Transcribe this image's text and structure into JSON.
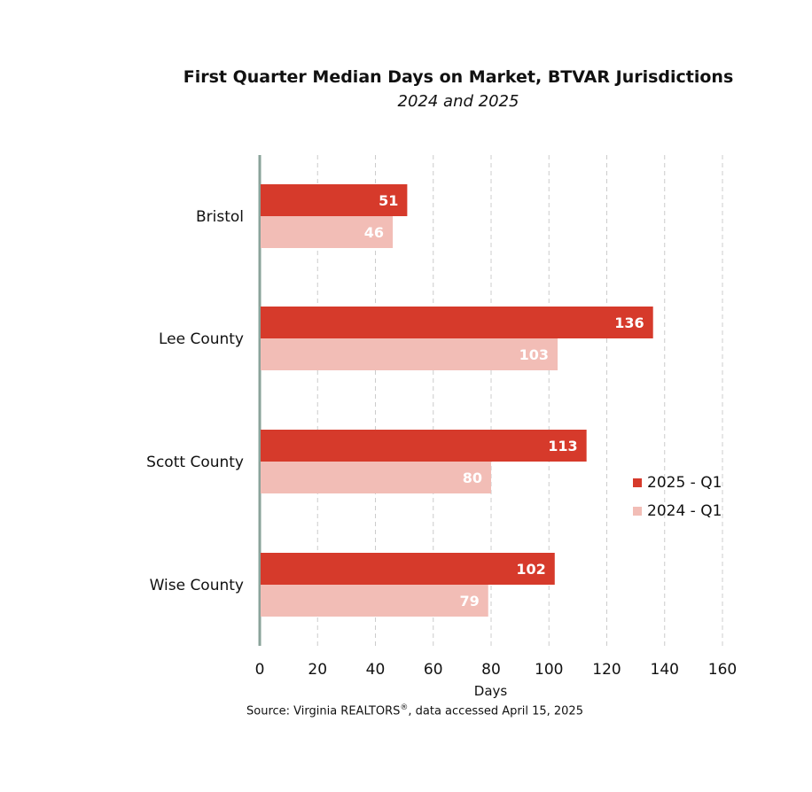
{
  "title": "First Quarter Median Days on Market, BTVAR Jurisdictions",
  "subtitle": "2024 and 2025",
  "source_text": "Source: Virginia REALTORS",
  "source_suffix": ", data accessed April 15, 2025",
  "source_mark": "®",
  "colors": {
    "series_2025": "#d63a2b",
    "series_2024": "#f2bdb6",
    "axis": "#8aa39a",
    "grid": "#cccccc"
  },
  "chart_data": {
    "type": "bar",
    "orientation": "horizontal",
    "title": "First Quarter Median Days on Market, BTVAR Jurisdictions",
    "subtitle": "2024 and 2025",
    "xlabel": "Days",
    "ylabel": "",
    "xlim": [
      0,
      160
    ],
    "xticks": [
      0,
      20,
      40,
      60,
      80,
      100,
      120,
      140,
      160
    ],
    "grid": "vertical dashed",
    "legend_position": "right",
    "categories": [
      "Bristol",
      "Lee County",
      "Scott County",
      "Wise County"
    ],
    "series": [
      {
        "name": "2025 - Q1",
        "values": [
          51,
          136,
          113,
          102
        ]
      },
      {
        "name": "2024 - Q1",
        "values": [
          46,
          103,
          80,
          79
        ]
      }
    ]
  }
}
